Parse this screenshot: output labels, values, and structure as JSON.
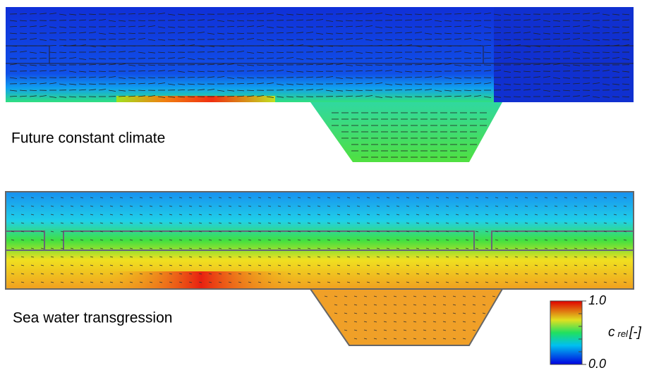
{
  "panels": [
    {
      "label": "Future constant climate"
    },
    {
      "label": "Sea water transgression"
    }
  ],
  "colorbar": {
    "symbol": "c",
    "subscript": "rel",
    "unit": "[-]",
    "ticks": [
      {
        "value": 0,
        "label": "0.0"
      },
      {
        "value": 1,
        "label": "1.0"
      }
    ]
  }
}
